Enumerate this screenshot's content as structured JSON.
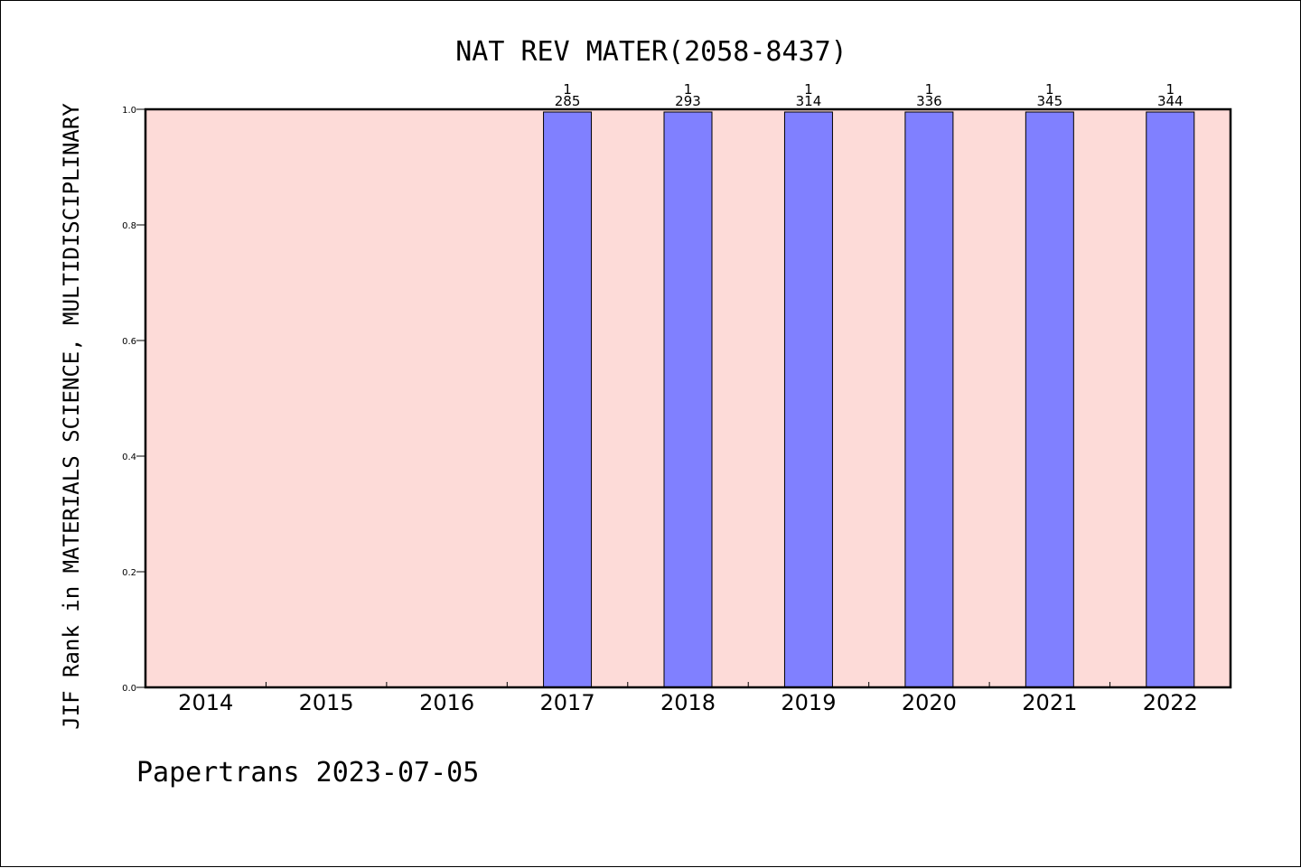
{
  "chart_data": {
    "type": "bar",
    "title": "NAT REV MATER(2058-8437)",
    "xlabel": "",
    "ylabel": "JIF Rank in MATERIALS SCIENCE, MULTIDISCIPLINARY",
    "categories": [
      "2014",
      "2015",
      "2016",
      "2017",
      "2018",
      "2019",
      "2020",
      "2021",
      "2022"
    ],
    "values": [
      null,
      null,
      null,
      1,
      1,
      1,
      1,
      1,
      1
    ],
    "labels_top": [
      "",
      "",
      "",
      "1",
      "1",
      "1",
      "1",
      "1",
      "1"
    ],
    "labels_bottom": [
      "",
      "",
      "",
      "285",
      "293",
      "314",
      "336",
      "345",
      "344"
    ],
    "ylim": [
      0,
      1
    ],
    "yticks": [
      "0.0",
      "0.2",
      "0.4",
      "0.6",
      "0.8",
      "1.0"
    ],
    "grid": false,
    "legend": "none",
    "colors": {
      "plot_background": "#fddbd8",
      "bar_fill": "#8080ff",
      "bar_stroke": "#000000"
    }
  },
  "footer": {
    "credit": "Papertrans 2023-07-05"
  }
}
